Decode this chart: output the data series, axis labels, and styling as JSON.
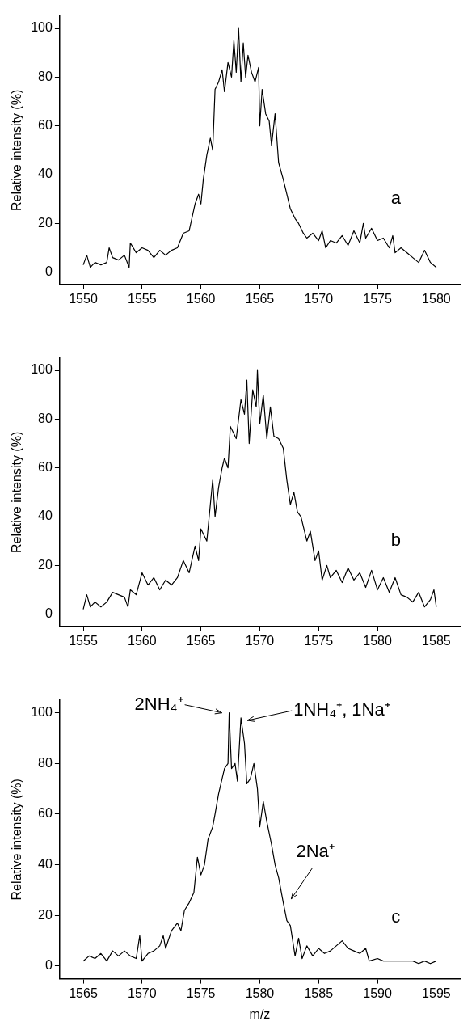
{
  "chart_data": [
    {
      "type": "line",
      "ylabel": "Relative intensity (%)",
      "xlim": [
        1548,
        1582
      ],
      "xticks": [
        1550,
        1555,
        1560,
        1565,
        1570,
        1575,
        1580
      ],
      "ylim": [
        -5,
        105
      ],
      "yticks": [
        0,
        20,
        40,
        60,
        80,
        100
      ],
      "grid": false,
      "legend": false,
      "marker": "none",
      "line_style": "solid",
      "annotations": [
        "a"
      ],
      "series": [
        {
          "color": "#000000",
          "x": [
            1550,
            1550.3,
            1550.6,
            1551,
            1551.5,
            1552,
            1552.2,
            1552.5,
            1553,
            1553.5,
            1553.9,
            1554,
            1554.5,
            1555,
            1555.5,
            1556,
            1556.5,
            1557,
            1557.5,
            1558,
            1558.5,
            1559,
            1559.5,
            1559.8,
            1560,
            1560.2,
            1560.5,
            1560.8,
            1561,
            1561.2,
            1561.5,
            1561.8,
            1562,
            1562.3,
            1562.6,
            1562.8,
            1563,
            1563.2,
            1563.4,
            1563.6,
            1563.8,
            1564,
            1564.3,
            1564.6,
            1564.9,
            1565,
            1565.2,
            1565.5,
            1565.8,
            1566,
            1566.3,
            1566.6,
            1567,
            1567.3,
            1567.6,
            1568,
            1568.3,
            1568.7,
            1569,
            1569.5,
            1570,
            1570.3,
            1570.6,
            1571,
            1571.5,
            1572,
            1572.5,
            1573,
            1573.5,
            1573.8,
            1574,
            1574.5,
            1575,
            1575.5,
            1576,
            1576.3,
            1576.5,
            1577,
            1577.5,
            1578,
            1578.5,
            1579,
            1579.5,
            1580
          ],
          "values": [
            3,
            7,
            2,
            4,
            3,
            4,
            10,
            6,
            5,
            7,
            2,
            12,
            8,
            10,
            9,
            6,
            9,
            7,
            9,
            10,
            16,
            17,
            28,
            32,
            28,
            38,
            48,
            55,
            50,
            75,
            78,
            83,
            74,
            86,
            80,
            95,
            82,
            100,
            78,
            94,
            80,
            89,
            82,
            78,
            84,
            60,
            75,
            65,
            62,
            52,
            65,
            45,
            38,
            32,
            26,
            22,
            20,
            16,
            14,
            16,
            13,
            17,
            10,
            13,
            12,
            15,
            11,
            17,
            12,
            20,
            14,
            18,
            13,
            14,
            10,
            15,
            8,
            10,
            8,
            6,
            4,
            9,
            4,
            2
          ]
        }
      ]
    },
    {
      "type": "line",
      "ylabel": "Relative intensity (%)",
      "xlim": [
        1553,
        1587
      ],
      "xticks": [
        1555,
        1560,
        1565,
        1570,
        1575,
        1580,
        1585
      ],
      "ylim": [
        -5,
        105
      ],
      "yticks": [
        0,
        20,
        40,
        60,
        80,
        100
      ],
      "grid": false,
      "legend": false,
      "marker": "none",
      "line_style": "solid",
      "annotations": [
        "b"
      ],
      "series": [
        {
          "color": "#000000",
          "x": [
            1555,
            1555.3,
            1555.6,
            1556,
            1556.5,
            1557,
            1557.5,
            1558,
            1558.5,
            1558.8,
            1559,
            1559.5,
            1560,
            1560.5,
            1561,
            1561.5,
            1562,
            1562.5,
            1563,
            1563.5,
            1564,
            1564.5,
            1564.8,
            1565,
            1565.5,
            1565.8,
            1566,
            1566.2,
            1566.5,
            1566.8,
            1567,
            1567.3,
            1567.5,
            1568,
            1568.4,
            1568.7,
            1568.9,
            1569.1,
            1569.4,
            1569.7,
            1569.8,
            1570,
            1570.3,
            1570.6,
            1570.9,
            1571.2,
            1571.6,
            1572,
            1572.3,
            1572.6,
            1572.9,
            1573.2,
            1573.5,
            1574,
            1574.3,
            1574.7,
            1575,
            1575.3,
            1575.7,
            1576,
            1576.5,
            1577,
            1577.5,
            1578,
            1578.5,
            1579,
            1579.5,
            1580,
            1580.5,
            1581,
            1581.5,
            1582,
            1582.5,
            1583,
            1583.5,
            1584,
            1584.5,
            1584.8,
            1585
          ],
          "values": [
            2,
            8,
            3,
            5,
            3,
            5,
            9,
            8,
            7,
            3,
            10,
            8,
            17,
            12,
            15,
            10,
            14,
            12,
            15,
            22,
            17,
            28,
            22,
            35,
            30,
            45,
            55,
            40,
            52,
            60,
            64,
            60,
            77,
            72,
            88,
            82,
            96,
            70,
            92,
            85,
            100,
            78,
            90,
            72,
            85,
            73,
            72,
            68,
            55,
            45,
            50,
            42,
            40,
            30,
            34,
            22,
            26,
            14,
            20,
            15,
            18,
            13,
            19,
            14,
            17,
            11,
            18,
            10,
            15,
            9,
            15,
            8,
            7,
            5,
            9,
            3,
            6,
            10,
            3
          ]
        }
      ]
    },
    {
      "type": "line",
      "ylabel": "Relative intensity (%)",
      "xlabel": "m/z",
      "xlim": [
        1563,
        1597
      ],
      "xticks": [
        1565,
        1570,
        1575,
        1580,
        1585,
        1590,
        1595
      ],
      "ylim": [
        -5,
        105
      ],
      "yticks": [
        0,
        20,
        40,
        60,
        80,
        100
      ],
      "grid": false,
      "legend": false,
      "marker": "none",
      "line_style": "solid",
      "annotations": [
        "c",
        {
          "text": "2NH₄⁺",
          "x": 1577.4,
          "y": 100
        },
        {
          "text": "1NH₄⁺, 1Na⁺",
          "x": 1578.4,
          "y": 97
        },
        {
          "text": "2Na⁺",
          "x": 1582.4,
          "y": 24
        }
      ],
      "series": [
        {
          "color": "#000000",
          "x": [
            1565,
            1565.5,
            1566,
            1566.5,
            1567,
            1567.5,
            1568,
            1568.5,
            1569,
            1569.5,
            1569.8,
            1570,
            1570.5,
            1571,
            1571.5,
            1571.8,
            1572,
            1572.5,
            1573,
            1573.3,
            1573.6,
            1574,
            1574.4,
            1574.7,
            1575,
            1575.3,
            1575.6,
            1576,
            1576.2,
            1576.5,
            1576.8,
            1577,
            1577.3,
            1577.4,
            1577.6,
            1577.9,
            1578.1,
            1578.4,
            1578.7,
            1578.9,
            1579.2,
            1579.5,
            1579.8,
            1580,
            1580.3,
            1580.6,
            1581,
            1581.3,
            1581.6,
            1582,
            1582.3,
            1582.6,
            1583,
            1583.3,
            1583.6,
            1584,
            1584.5,
            1585,
            1585.5,
            1586,
            1586.5,
            1587,
            1587.5,
            1588,
            1588.5,
            1589,
            1589.3,
            1590,
            1590.5,
            1591,
            1592,
            1593,
            1593.5,
            1594,
            1594.5,
            1595
          ],
          "values": [
            2,
            4,
            3,
            5,
            2,
            6,
            4,
            6,
            4,
            3,
            12,
            2,
            5,
            6,
            8,
            12,
            7,
            14,
            17,
            14,
            22,
            25,
            29,
            43,
            36,
            40,
            50,
            55,
            60,
            68,
            74,
            78,
            80,
            100,
            78,
            80,
            73,
            98,
            88,
            72,
            74,
            80,
            70,
            55,
            65,
            57,
            48,
            40,
            35,
            25,
            18,
            16,
            4,
            11,
            3,
            8,
            4,
            7,
            5,
            6,
            8,
            10,
            7,
            6,
            5,
            7,
            2,
            3,
            2,
            2,
            2,
            2,
            1,
            2,
            1,
            2
          ]
        }
      ]
    }
  ]
}
